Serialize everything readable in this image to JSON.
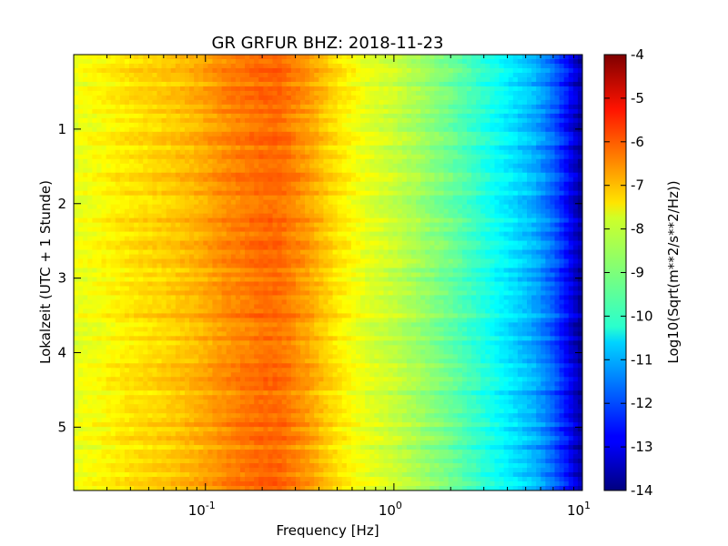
{
  "chart_data": {
    "type": "heatmap",
    "title": "GR GRFUR BHZ: 2018-11-23",
    "xlabel": "Frequency [Hz]",
    "ylabel": "Lokalzeit (UTC + 1 Stunde)",
    "x_scale": "log",
    "xlim": [
      0.02,
      10
    ],
    "ylim": [
      5.85,
      0
    ],
    "x_ticks": [
      {
        "value": 0.1,
        "label_base": "10",
        "label_exp": "-1"
      },
      {
        "value": 1,
        "label_base": "10",
        "label_exp": "0"
      },
      {
        "value": 10,
        "label_base": "10",
        "label_exp": "1"
      }
    ],
    "y_ticks": [
      {
        "value": 1,
        "label": "1"
      },
      {
        "value": 2,
        "label": "2"
      },
      {
        "value": 3,
        "label": "3"
      },
      {
        "value": 4,
        "label": "4"
      },
      {
        "value": 5,
        "label": "5"
      }
    ],
    "colorbar": {
      "label": "Log10(Sqrt(m**2/s**2/Hz))",
      "range": [
        -14,
        -4
      ],
      "ticks": [
        "-4",
        "-5",
        "-6",
        "-7",
        "-8",
        "-9",
        "-10",
        "-11",
        "-12",
        "-13",
        "-14"
      ],
      "colormap": "jet"
    },
    "grid": false,
    "spectrum_profile": {
      "frequency_hz": [
        0.02,
        0.04,
        0.06,
        0.09,
        0.13,
        0.2,
        0.25,
        0.35,
        0.5,
        0.7,
        1.0,
        1.5,
        2.0,
        3.0,
        4.0,
        5.5,
        7.0,
        8.5,
        10.0
      ],
      "value": [
        -8.0,
        -7.5,
        -7.3,
        -7.0,
        -6.6,
        -6.3,
        -6.3,
        -6.8,
        -7.5,
        -8.0,
        -8.3,
        -8.8,
        -9.2,
        -9.9,
        -10.4,
        -11.0,
        -11.8,
        -12.8,
        -13.8
      ]
    }
  }
}
